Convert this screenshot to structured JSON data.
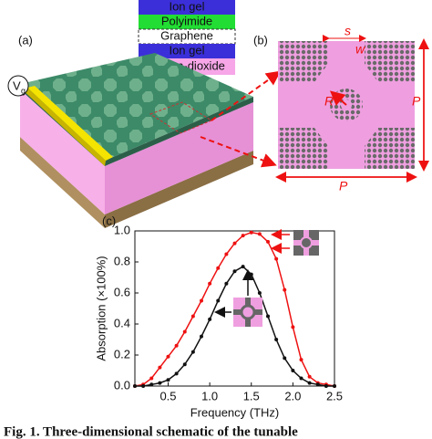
{
  "panels": {
    "a": "(a)",
    "b": "(b)",
    "c": "(c)"
  },
  "layers": [
    "Ion gel",
    "Polyimide",
    "Graphene",
    "Ion gel",
    "Silicon-dioxide"
  ],
  "gate_label": {
    "main": "V",
    "sub": "g"
  },
  "unit_cell_labels": {
    "s": "s",
    "w": "w",
    "R": "R",
    "P_vertical": "P",
    "P_horizontal": "P"
  },
  "caption": "Fig. 1.  Three-dimensional schematic of the tunable",
  "chart_data": {
    "type": "line",
    "xlabel": "Frequency (THz)",
    "ylabel": "Absorption (×100%)",
    "x": [
      0.1,
      0.2,
      0.3,
      0.4,
      0.5,
      0.6,
      0.7,
      0.8,
      0.9,
      1.0,
      1.1,
      1.2,
      1.3,
      1.4,
      1.5,
      1.6,
      1.7,
      1.8,
      1.9,
      2.0,
      2.1,
      2.2,
      2.3,
      2.4,
      2.5
    ],
    "series": [
      {
        "color": "#ee1111",
        "values": [
          0.0,
          0.01,
          0.05,
          0.12,
          0.19,
          0.26,
          0.35,
          0.45,
          0.55,
          0.66,
          0.76,
          0.85,
          0.92,
          0.97,
          0.99,
          0.98,
          0.93,
          0.82,
          0.62,
          0.38,
          0.17,
          0.06,
          0.02,
          0.01,
          0.0
        ]
      },
      {
        "color": "#111111",
        "values": [
          0.0,
          0.0,
          0.01,
          0.02,
          0.04,
          0.08,
          0.14,
          0.22,
          0.32,
          0.43,
          0.55,
          0.66,
          0.74,
          0.77,
          0.72,
          0.6,
          0.45,
          0.3,
          0.18,
          0.1,
          0.05,
          0.02,
          0.01,
          0.0,
          0.0
        ]
      }
    ],
    "xlim": [
      0.1,
      2.5
    ],
    "ylim": [
      0,
      1
    ],
    "xticks": [
      0.5,
      {
        "value": 1,
        "label": "1.0"
      },
      1.5,
      {
        "value": 2,
        "label": "2.0"
      },
      2.5
    ],
    "yticks": [
      {
        "value": 0,
        "label": "0.0"
      },
      0.2,
      0.4,
      0.6,
      0.8,
      {
        "value": 1,
        "label": "1.0"
      }
    ]
  }
}
